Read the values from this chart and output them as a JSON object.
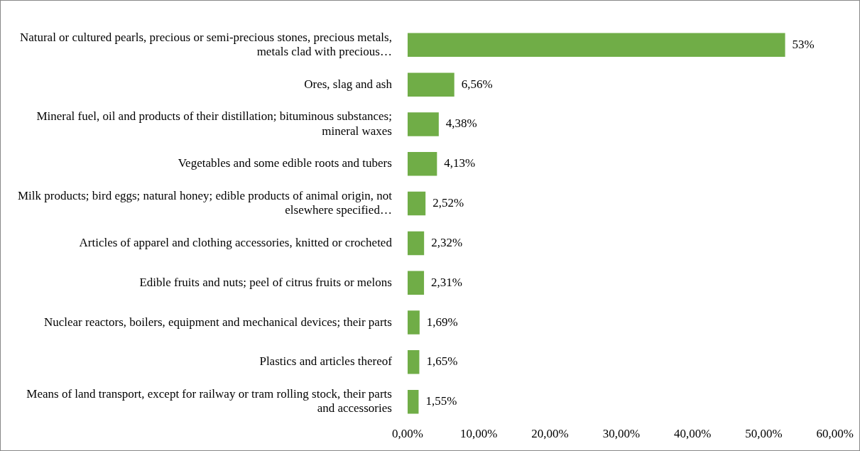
{
  "chart_data": {
    "type": "bar",
    "orientation": "horizontal",
    "categories": [
      "Natural or cultured pearls, precious or semi-precious stones, precious metals, metals clad with precious…",
      "Ores, slag and ash",
      "Mineral fuel, oil and products of their distillation; bituminous substances; mineral waxes",
      "Vegetables and some edible roots and tubers",
      "Milk products; bird eggs; natural honey; edible products of animal origin, not elsewhere specified…",
      "Articles of apparel and clothing accessories, knitted or crocheted",
      "Edible fruits and nuts; peel of citrus fruits or melons",
      "Nuclear reactors, boilers, equipment and mechanical devices; their parts",
      "Plastics and articles thereof",
      "Means of land transport, except for railway or tram rolling stock, their parts and accessories"
    ],
    "values": [
      53,
      6.56,
      4.38,
      4.13,
      2.52,
      2.32,
      2.31,
      1.69,
      1.65,
      1.55
    ],
    "value_labels": [
      "53%",
      "6,56%",
      "4,38%",
      "4,13%",
      "2,52%",
      "2,32%",
      "2,31%",
      "1,69%",
      "1,65%",
      "1,55%"
    ],
    "color": "#70ad47",
    "xlim": [
      0,
      60
    ],
    "xticks": [
      {
        "value": 0,
        "label": "0,00%"
      },
      {
        "value": 10,
        "label": "10,00%"
      },
      {
        "value": 20,
        "label": "20,00%"
      },
      {
        "value": 30,
        "label": "30,00%"
      },
      {
        "value": 40,
        "label": "40,00%"
      },
      {
        "value": 50,
        "label": "50,00%"
      },
      {
        "value": 60,
        "label": "60,00%"
      }
    ],
    "grid": false,
    "legend": false
  }
}
